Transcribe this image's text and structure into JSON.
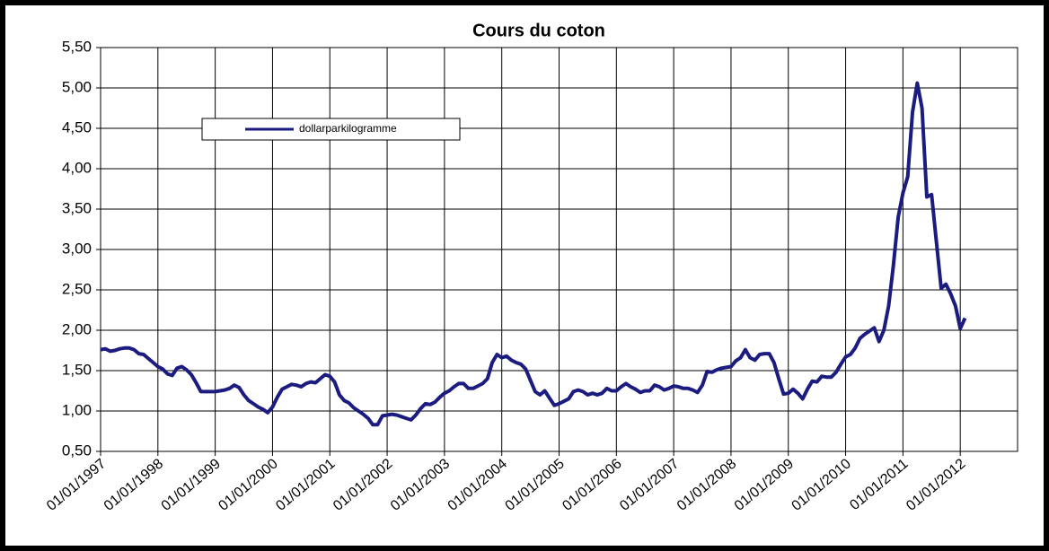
{
  "chart_data": {
    "type": "line",
    "title": "Cours du coton",
    "x": [
      1997,
      1997.083,
      1997.167,
      1997.25,
      1997.333,
      1997.417,
      1997.5,
      1997.583,
      1997.667,
      1997.75,
      1997.833,
      1997.917,
      1998,
      1998.083,
      1998.167,
      1998.25,
      1998.333,
      1998.417,
      1998.5,
      1998.583,
      1998.667,
      1998.75,
      1998.833,
      1998.917,
      1999,
      1999.083,
      1999.167,
      1999.25,
      1999.333,
      1999.417,
      1999.5,
      1999.583,
      1999.667,
      1999.75,
      1999.833,
      1999.917,
      2000,
      2000.083,
      2000.167,
      2000.25,
      2000.333,
      2000.417,
      2000.5,
      2000.583,
      2000.667,
      2000.75,
      2000.833,
      2000.917,
      2001,
      2001.083,
      2001.167,
      2001.25,
      2001.333,
      2001.417,
      2001.5,
      2001.583,
      2001.667,
      2001.75,
      2001.833,
      2001.917,
      2002,
      2002.083,
      2002.167,
      2002.25,
      2002.333,
      2002.417,
      2002.5,
      2002.583,
      2002.667,
      2002.75,
      2002.833,
      2002.917,
      2003,
      2003.083,
      2003.167,
      2003.25,
      2003.333,
      2003.417,
      2003.5,
      2003.583,
      2003.667,
      2003.75,
      2003.833,
      2003.917,
      2004,
      2004.083,
      2004.167,
      2004.25,
      2004.333,
      2004.417,
      2004.5,
      2004.583,
      2004.667,
      2004.75,
      2004.833,
      2004.917,
      2005,
      2005.083,
      2005.167,
      2005.25,
      2005.333,
      2005.417,
      2005.5,
      2005.583,
      2005.667,
      2005.75,
      2005.833,
      2005.917,
      2006,
      2006.083,
      2006.167,
      2006.25,
      2006.333,
      2006.417,
      2006.5,
      2006.583,
      2006.667,
      2006.75,
      2006.833,
      2006.917,
      2007,
      2007.083,
      2007.167,
      2007.25,
      2007.333,
      2007.417,
      2007.5,
      2007.583,
      2007.667,
      2007.75,
      2007.833,
      2007.917,
      2008,
      2008.083,
      2008.167,
      2008.25,
      2008.333,
      2008.417,
      2008.5,
      2008.583,
      2008.667,
      2008.75,
      2008.833,
      2008.917,
      2009,
      2009.083,
      2009.167,
      2009.25,
      2009.333,
      2009.417,
      2009.5,
      2009.583,
      2009.667,
      2009.75,
      2009.833,
      2009.917,
      2010,
      2010.083,
      2010.167,
      2010.25,
      2010.333,
      2010.417,
      2010.5,
      2010.583,
      2010.667,
      2010.75,
      2010.833,
      2010.917,
      2011,
      2011.083,
      2011.167,
      2011.25,
      2011.333,
      2011.417,
      2011.5,
      2011.583,
      2011.667,
      2011.75,
      2011.833,
      2011.917,
      2012,
      2012.083
    ],
    "series": [
      {
        "name": "dollarparkilogramme",
        "color": "#1c1c80",
        "values": [
          1.76,
          1.77,
          1.74,
          1.75,
          1.77,
          1.78,
          1.78,
          1.76,
          1.71,
          1.7,
          1.65,
          1.6,
          1.55,
          1.52,
          1.46,
          1.44,
          1.53,
          1.55,
          1.51,
          1.45,
          1.35,
          1.24,
          1.24,
          1.24,
          1.24,
          1.25,
          1.26,
          1.28,
          1.32,
          1.29,
          1.2,
          1.13,
          1.09,
          1.05,
          1.02,
          0.98,
          1.05,
          1.17,
          1.27,
          1.3,
          1.33,
          1.32,
          1.3,
          1.34,
          1.36,
          1.35,
          1.4,
          1.45,
          1.43,
          1.36,
          1.2,
          1.13,
          1.1,
          1.04,
          1.0,
          0.96,
          0.91,
          0.83,
          0.83,
          0.94,
          0.95,
          0.96,
          0.95,
          0.93,
          0.91,
          0.89,
          0.95,
          1.03,
          1.09,
          1.08,
          1.11,
          1.17,
          1.22,
          1.25,
          1.3,
          1.34,
          1.34,
          1.28,
          1.28,
          1.31,
          1.34,
          1.4,
          1.6,
          1.7,
          1.66,
          1.68,
          1.63,
          1.6,
          1.58,
          1.52,
          1.38,
          1.24,
          1.2,
          1.25,
          1.16,
          1.07,
          1.09,
          1.12,
          1.15,
          1.24,
          1.26,
          1.24,
          1.2,
          1.22,
          1.2,
          1.22,
          1.28,
          1.25,
          1.25,
          1.3,
          1.34,
          1.3,
          1.27,
          1.23,
          1.25,
          1.25,
          1.32,
          1.3,
          1.26,
          1.28,
          1.31,
          1.3,
          1.28,
          1.28,
          1.26,
          1.23,
          1.32,
          1.49,
          1.48,
          1.51,
          1.53,
          1.54,
          1.55,
          1.62,
          1.66,
          1.76,
          1.66,
          1.63,
          1.7,
          1.71,
          1.71,
          1.6,
          1.4,
          1.21,
          1.22,
          1.27,
          1.22,
          1.15,
          1.27,
          1.37,
          1.36,
          1.43,
          1.42,
          1.42,
          1.48,
          1.58,
          1.67,
          1.7,
          1.78,
          1.9,
          1.95,
          1.99,
          2.03,
          1.86,
          2.0,
          2.3,
          2.8,
          3.4,
          3.7,
          3.9,
          4.7,
          5.06,
          4.75,
          3.65,
          3.68,
          3.1,
          2.52,
          2.57,
          2.45,
          2.3,
          2.02,
          2.15
        ]
      }
    ],
    "xlim": [
      1997,
      2013
    ],
    "xticks": [
      {
        "value": 1997,
        "label": "01/01/1997"
      },
      {
        "value": 1998,
        "label": "01/01/1998"
      },
      {
        "value": 1999,
        "label": "01/01/1999"
      },
      {
        "value": 2000,
        "label": "01/01/2000"
      },
      {
        "value": 2001,
        "label": "01/01/2001"
      },
      {
        "value": 2002,
        "label": "01/01/2002"
      },
      {
        "value": 2003,
        "label": "01/01/2003"
      },
      {
        "value": 2004,
        "label": "01/01/2004"
      },
      {
        "value": 2005,
        "label": "01/01/2005"
      },
      {
        "value": 2006,
        "label": "01/01/2006"
      },
      {
        "value": 2007,
        "label": "01/01/2007"
      },
      {
        "value": 2008,
        "label": "01/01/2008"
      },
      {
        "value": 2009,
        "label": "01/01/2009"
      },
      {
        "value": 2010,
        "label": "01/01/2010"
      },
      {
        "value": 2011,
        "label": "01/01/2011"
      },
      {
        "value": 2012,
        "label": "01/01/2012"
      }
    ],
    "ylim": [
      0.5,
      5.5
    ],
    "yticks": [
      {
        "value": 0.5,
        "label": "0,50"
      },
      {
        "value": 1,
        "label": "1,00"
      },
      {
        "value": 1.5,
        "label": "1,50"
      },
      {
        "value": 2,
        "label": "2,00"
      },
      {
        "value": 2.5,
        "label": "2,50"
      },
      {
        "value": 3,
        "label": "3,00"
      },
      {
        "value": 3.5,
        "label": "3,50"
      },
      {
        "value": 4,
        "label": "4,00"
      },
      {
        "value": 4.5,
        "label": "4,50"
      },
      {
        "value": 5,
        "label": "5,00"
      },
      {
        "value": 5.5,
        "label": "5,50"
      }
    ],
    "grid": true,
    "legend_position": "upper left"
  }
}
